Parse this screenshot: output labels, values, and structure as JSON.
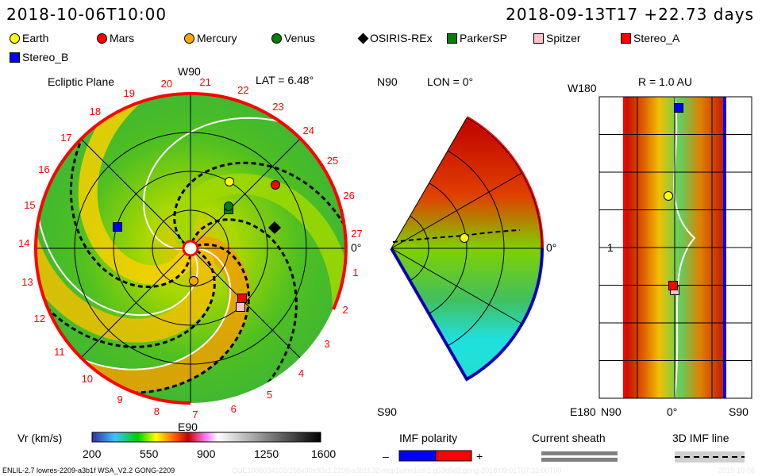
{
  "header": {
    "current_time": "2018-10-06T10:00",
    "run_info": "2018-09-13T17 +22.73 days"
  },
  "legend": [
    {
      "name": "Earth",
      "color": "#ffff00",
      "shape": "circle"
    },
    {
      "name": "Mars",
      "color": "#ff0000",
      "shape": "circle"
    },
    {
      "name": "Mercury",
      "color": "#ffa500",
      "shape": "circle"
    },
    {
      "name": "Venus",
      "color": "#008000",
      "shape": "circle"
    },
    {
      "name": "OSIRIS-REx",
      "color": "#000000",
      "shape": "diamond"
    },
    {
      "name": "ParkerSP",
      "color": "#008000",
      "shape": "square"
    },
    {
      "name": "Spitzer",
      "color": "#ffc0cb",
      "shape": "square"
    },
    {
      "name": "Stereo_A",
      "color": "#ff0000",
      "shape": "square"
    },
    {
      "name": "Stereo_B",
      "color": "#0000ff",
      "shape": "square"
    }
  ],
  "ecliptic": {
    "title": "Ecliptic Plane",
    "top": "W90",
    "bottom": "E90",
    "right": "0°",
    "lat": "LAT = 6.48°",
    "day_labels": [
      "1",
      "2",
      "3",
      "4",
      "5",
      "6",
      "7",
      "8",
      "9",
      "10",
      "11",
      "12",
      "13",
      "14",
      "15",
      "16",
      "17",
      "18",
      "19",
      "20",
      "21",
      "22",
      "23",
      "24",
      "25",
      "26",
      "27"
    ]
  },
  "meridional": {
    "top": "N90",
    "bottom": "S90",
    "right": "0°",
    "lon": "LON = 0°"
  },
  "radial": {
    "title": "R = 1.0 AU",
    "top_left": "W180",
    "bottom_left": "E180",
    "mid_left": "1",
    "bottom_axis": [
      "N90",
      "0°",
      "S90"
    ]
  },
  "colorbar": {
    "label": "Vr (km/s)",
    "ticks": [
      "200",
      "550",
      "900",
      "1250",
      "1600"
    ]
  },
  "imf": {
    "label": "IMF polarity",
    "minus": "–",
    "plus": "+",
    "neg_color": "#0000ff",
    "pos_color": "#ff0000"
  },
  "sheath": {
    "label": "Current sheath"
  },
  "imf_line": {
    "label": "3D IMF line"
  },
  "footer": {
    "model": "ENLIL-2.7 lowres-2209-a3b1f WSA_V2.2 GONG-2209",
    "run_id": "QUE1006034102/256x30x90x1.2209-a3b1f.32-mcp1umn1cd-1.g53q5d2.gong-2018:09:01T07:31:00T00",
    "date": "2018-10-06"
  }
}
